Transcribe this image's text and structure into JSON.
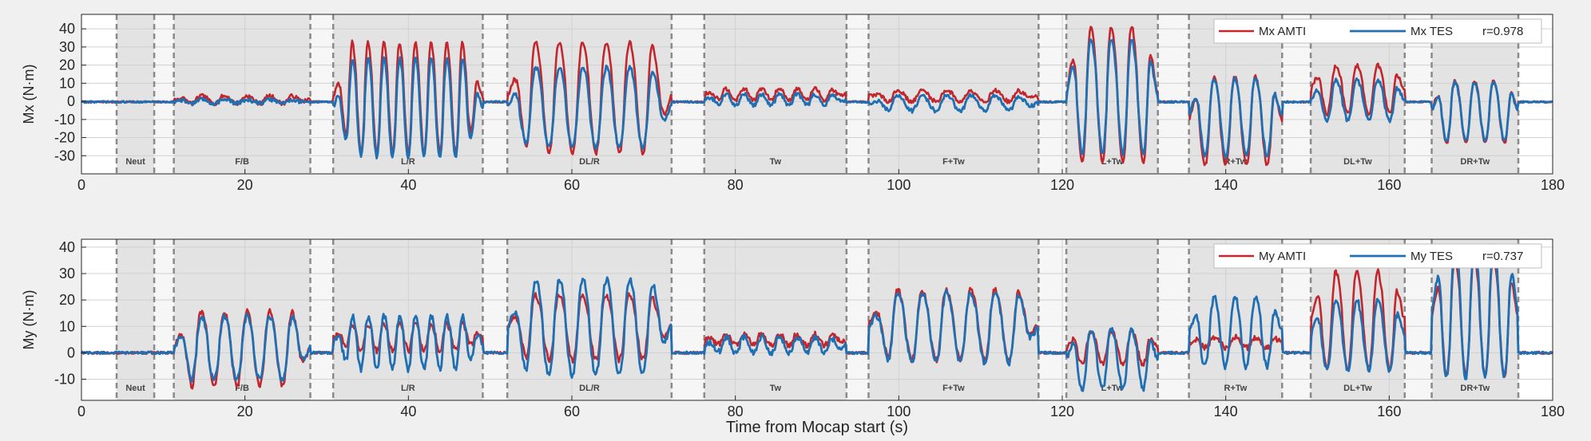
{
  "chart_data": [
    {
      "type": "line",
      "panel": "top",
      "ylabel": "Mx (N·m)",
      "xlabel": "",
      "xlim": [
        0,
        180
      ],
      "ylim": [
        -40,
        48
      ],
      "xticks": [
        0,
        20,
        40,
        60,
        80,
        100,
        120,
        140,
        160,
        180
      ],
      "yticks": [
        -30,
        -20,
        -10,
        0,
        10,
        20,
        30,
        40
      ],
      "grid": true,
      "legend_position": "top-right",
      "legend": [
        "Mx AMTI",
        "Mx TES",
        "r=0.978"
      ],
      "series": [
        {
          "name": "Mx AMTI",
          "color": "#c1272d"
        },
        {
          "name": "Mx TES",
          "color": "#1f6fb2"
        }
      ]
    },
    {
      "type": "line",
      "panel": "bottom",
      "ylabel": "My (N·m)",
      "xlabel": "Time from Mocap start (s)",
      "xlim": [
        0,
        180
      ],
      "ylim": [
        -18,
        43
      ],
      "xticks": [
        0,
        20,
        40,
        60,
        80,
        100,
        120,
        140,
        160,
        180
      ],
      "yticks": [
        -10,
        0,
        10,
        20,
        30,
        40
      ],
      "grid": true,
      "legend_position": "top-right",
      "legend": [
        "My AMTI",
        "My TES",
        "r=0.737"
      ],
      "series": [
        {
          "name": "My AMTI",
          "color": "#c1272d"
        },
        {
          "name": "My TES",
          "color": "#1f6fb2"
        }
      ]
    }
  ],
  "segments": [
    {
      "label": "Neut",
      "start": 4.3,
      "end": 8.9
    },
    {
      "label": "F/B",
      "start": 11.3,
      "end": 28.0
    },
    {
      "label": "L/R",
      "start": 30.8,
      "end": 49.1
    },
    {
      "label": "DL/R",
      "start": 52.1,
      "end": 72.2
    },
    {
      "label": "Tw",
      "start": 76.2,
      "end": 93.6
    },
    {
      "label": "F+Tw",
      "start": 96.3,
      "end": 117.1
    },
    {
      "label": "L+Tw",
      "start": 120.5,
      "end": 131.7
    },
    {
      "label": "R+Tw",
      "start": 135.5,
      "end": 146.9
    },
    {
      "label": "DL+Tw",
      "start": 150.4,
      "end": 161.9
    },
    {
      "label": "DR+Tw",
      "start": 165.2,
      "end": 175.8
    }
  ],
  "signal_model": {
    "baseline": {
      "top_red": [
        0,
        -1
      ],
      "top_blue": [
        0,
        -1
      ],
      "bottom_red": [
        0,
        0
      ],
      "bottom_blue": [
        0,
        0
      ]
    },
    "segments": [
      {
        "top_red": [
          1,
          2,
          1.2,
          6.0
        ],
        "top_blue": [
          0,
          1,
          4,
          6.0
        ],
        "bottom_red": [
          2,
          14,
          0.6,
          6.0
        ],
        "bottom_blue": [
          2,
          12,
          0.2,
          6.0
        ]
      },
      {
        "top_red": [
          3,
          30,
          0.6,
          9.5
        ],
        "top_blue": [
          -3,
          27,
          0.2,
          9.5
        ],
        "bottom_red": [
          6,
          5,
          1,
          9.5
        ],
        "bottom_blue": [
          4,
          10,
          0.2,
          9.5
        ]
      },
      {
        "top_red": [
          3,
          30,
          0.6,
          7.0
        ],
        "top_blue": [
          -3,
          22,
          0.2,
          7.0
        ],
        "bottom_red": [
          10,
          12,
          0.6,
          7.0
        ],
        "bottom_blue": [
          10,
          18,
          0.4,
          7.0
        ]
      },
      {
        "top_red": [
          4,
          3,
          1,
          8.0
        ],
        "top_blue": [
          1,
          3,
          3,
          8.0
        ],
        "bottom_red": [
          5,
          2,
          2,
          8.0
        ],
        "bottom_blue": [
          3,
          3,
          2,
          8.0
        ]
      },
      {
        "top_red": [
          3,
          3,
          1,
          7.0
        ],
        "top_blue": [
          -1,
          4,
          2,
          7.0
        ],
        "bottom_red": [
          11,
          13,
          1,
          7.0
        ],
        "bottom_blue": [
          10,
          13,
          0.8,
          7.0
        ]
      },
      {
        "top_red": [
          5,
          37,
          0.6,
          4.5
        ],
        "top_blue": [
          4,
          31,
          0.6,
          4.5
        ],
        "bottom_red": [
          2,
          6,
          1,
          4.5
        ],
        "bottom_blue": [
          -2,
          11,
          1,
          4.5
        ]
      },
      {
        "top_red": [
          -10,
          24,
          1,
          4.5
        ],
        "top_blue": [
          -8,
          21,
          1,
          4.5
        ],
        "bottom_red": [
          4,
          2,
          2,
          4.5
        ],
        "bottom_blue": [
          8,
          13,
          0.4,
          4.5
        ]
      },
      {
        "top_red": [
          7,
          13,
          1,
          4.5
        ],
        "top_blue": [
          1,
          11,
          1,
          4.5
        ],
        "bottom_red": [
          13,
          18,
          0.6,
          4.5
        ],
        "bottom_blue": [
          7,
          13,
          0.6,
          4.5
        ]
      },
      {
        "top_red": [
          -5,
          17,
          1,
          4.5
        ],
        "top_blue": [
          -5,
          16,
          1,
          4.5
        ],
        "bottom_red": [
          14,
          22,
          0.6,
          4.5
        ],
        "bottom_blue": [
          16,
          25,
          0.4,
          4.5
        ]
      }
    ]
  }
}
